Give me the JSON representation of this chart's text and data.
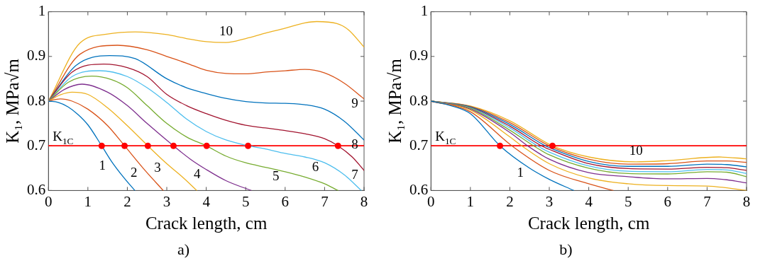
{
  "chart_data": [
    {
      "type": "line",
      "title": "a)",
      "xlabel": "Crack length, cm",
      "ylabel": "K₁, MPa√m",
      "xlim": [
        0,
        8
      ],
      "ylim": [
        0.6,
        1
      ],
      "xticks": [
        0,
        1,
        2,
        3,
        4,
        5,
        6,
        7,
        8
      ],
      "yticks": [
        0.6,
        0.7,
        0.8,
        0.9,
        1
      ],
      "grid": false,
      "marker": "none",
      "series": [
        {
          "name": "1",
          "color": "#0072bd",
          "x": [
            0,
            0.25,
            0.5,
            0.75,
            1,
            1.35,
            1.6,
            1.9,
            2.19
          ],
          "values": [
            0.8,
            0.797,
            0.787,
            0.77,
            0.747,
            0.7,
            0.665,
            0.63,
            0.6
          ]
        },
        {
          "name": "2",
          "color": "#d95319",
          "x": [
            0,
            0.3,
            0.6,
            1,
            1.5,
            1.93,
            2.4,
            2.91
          ],
          "values": [
            0.8,
            0.805,
            0.8,
            0.782,
            0.745,
            0.7,
            0.65,
            0.6
          ]
        },
        {
          "name": "3",
          "color": "#edb120",
          "x": [
            0,
            0.3,
            0.6,
            1,
            1.5,
            2,
            2.52,
            3,
            3.4,
            3.76
          ],
          "values": [
            0.8,
            0.814,
            0.82,
            0.815,
            0.785,
            0.745,
            0.7,
            0.66,
            0.63,
            0.6
          ]
        },
        {
          "name": "4",
          "color": "#7e2f8e",
          "x": [
            0,
            0.4,
            0.85,
            1.5,
            2,
            2.5,
            3.17,
            3.6,
            4,
            4.5,
            5.14
          ],
          "values": [
            0.8,
            0.826,
            0.838,
            0.82,
            0.79,
            0.75,
            0.7,
            0.67,
            0.647,
            0.622,
            0.6
          ]
        },
        {
          "name": "5",
          "color": "#77ac30",
          "x": [
            0,
            0.5,
            1.1,
            1.6,
            2,
            2.5,
            3,
            3.5,
            4,
            4.5,
            5,
            5.5,
            6,
            6.5,
            7,
            7.34
          ],
          "values": [
            0.8,
            0.842,
            0.856,
            0.848,
            0.83,
            0.79,
            0.75,
            0.72,
            0.7,
            0.677,
            0.662,
            0.652,
            0.642,
            0.63,
            0.615,
            0.6
          ]
        },
        {
          "name": "6",
          "color": "#4dbeee",
          "x": [
            0,
            0.6,
            1.3,
            2,
            2.5,
            3,
            3.5,
            4,
            4.5,
            5.06,
            5.5,
            6,
            6.5,
            7,
            7.5,
            7.93
          ],
          "values": [
            0.8,
            0.855,
            0.868,
            0.855,
            0.83,
            0.797,
            0.76,
            0.732,
            0.713,
            0.7,
            0.693,
            0.683,
            0.675,
            0.662,
            0.635,
            0.6
          ]
        },
        {
          "name": "7",
          "color": "#a2142f",
          "x": [
            0,
            0.6,
            1.4,
            2,
            2.5,
            3,
            3.5,
            4,
            4.5,
            5,
            5.5,
            6,
            6.5,
            7,
            7.34,
            7.7,
            8
          ],
          "values": [
            0.8,
            0.865,
            0.883,
            0.875,
            0.855,
            0.815,
            0.79,
            0.772,
            0.757,
            0.746,
            0.74,
            0.734,
            0.727,
            0.716,
            0.7,
            0.675,
            0.645
          ]
        },
        {
          "name": "8",
          "color": "#0072bd",
          "x": [
            0,
            0.7,
            1.55,
            2.2,
            3,
            3.5,
            4,
            4.5,
            5,
            5.5,
            6,
            6.5,
            7,
            7.5,
            8
          ],
          "values": [
            0.8,
            0.88,
            0.902,
            0.895,
            0.85,
            0.83,
            0.817,
            0.806,
            0.799,
            0.796,
            0.795,
            0.792,
            0.782,
            0.755,
            0.713
          ]
        },
        {
          "name": "9",
          "color": "#d95319",
          "x": [
            0,
            0.8,
            1.75,
            2.5,
            3,
            3.5,
            4,
            4.5,
            5,
            5.5,
            6,
            6.5,
            7,
            7.5,
            8
          ],
          "values": [
            0.8,
            0.905,
            0.925,
            0.915,
            0.9,
            0.885,
            0.869,
            0.862,
            0.861,
            0.865,
            0.868,
            0.871,
            0.863,
            0.84,
            0.805
          ]
        },
        {
          "name": "10",
          "color": "#edb120",
          "x": [
            0,
            0.8,
            1.5,
            2.2,
            3,
            3.5,
            4,
            4.5,
            5,
            5.5,
            6,
            6.5,
            6.8,
            7.3,
            7.6,
            8
          ],
          "values": [
            0.8,
            0.93,
            0.95,
            0.955,
            0.949,
            0.94,
            0.933,
            0.931,
            0.94,
            0.952,
            0.963,
            0.975,
            0.978,
            0.974,
            0.96,
            0.921
          ]
        },
        {
          "type": "scatter",
          "marker": "circle",
          "color": "#ff0000",
          "x": [
            1.35,
            1.93,
            2.52,
            3.17,
            4.01,
            5.06,
            7.34
          ],
          "values": [
            0.7,
            0.7,
            0.7,
            0.7,
            0.7,
            0.7,
            0.7
          ]
        }
      ],
      "ref_lines": [
        {
          "axis": "y",
          "value": 0.7,
          "label": "K$_{1C}$",
          "color": "#ff0000"
        }
      ]
    },
    {
      "type": "line",
      "title": "b)",
      "xlabel": "Crack length, cm",
      "ylabel": "K₁, MPa√m",
      "xlim": [
        0,
        8
      ],
      "ylim": [
        0.6,
        1
      ],
      "xticks": [
        0,
        1,
        2,
        3,
        4,
        5,
        6,
        7,
        8
      ],
      "yticks": [
        0.6,
        0.7,
        0.8,
        0.9,
        1
      ],
      "grid": false,
      "marker": "none",
      "series": [
        {
          "name": "1",
          "color": "#0072bd",
          "x": [
            0,
            0.5,
            1,
            1.75,
            2.5,
            3,
            3.62
          ],
          "values": [
            0.8,
            0.79,
            0.772,
            0.7,
            0.65,
            0.625,
            0.6
          ]
        },
        {
          "color": "#d95319",
          "x": [
            0,
            1,
            2.05,
            3,
            4,
            4.62
          ],
          "values": [
            0.8,
            0.776,
            0.7,
            0.645,
            0.615,
            0.6
          ]
        },
        {
          "color": "#edb120",
          "x": [
            0,
            1,
            2,
            2.3,
            3,
            4,
            5,
            6,
            7,
            8
          ],
          "values": [
            0.8,
            0.78,
            0.72,
            0.7,
            0.66,
            0.628,
            0.615,
            0.611,
            0.61,
            0.6
          ]
        },
        {
          "color": "#7e2f8e",
          "x": [
            0,
            1,
            2,
            2.45,
            3,
            4,
            5,
            6,
            7,
            7.5,
            8
          ],
          "values": [
            0.8,
            0.782,
            0.73,
            0.7,
            0.67,
            0.64,
            0.631,
            0.626,
            0.627,
            0.624,
            0.617
          ]
        },
        {
          "color": "#77ac30",
          "x": [
            0,
            1,
            2,
            2.6,
            3,
            4,
            5,
            6,
            7,
            7.5,
            8
          ],
          "values": [
            0.8,
            0.784,
            0.735,
            0.7,
            0.68,
            0.65,
            0.638,
            0.637,
            0.642,
            0.641,
            0.631
          ]
        },
        {
          "color": "#4dbeee",
          "x": [
            0,
            1,
            2,
            2.7,
            3,
            4,
            5,
            6,
            7,
            7.5,
            8
          ],
          "values": [
            0.8,
            0.785,
            0.74,
            0.7,
            0.686,
            0.655,
            0.643,
            0.642,
            0.647,
            0.646,
            0.638
          ]
        },
        {
          "color": "#a2142f",
          "x": [
            0,
            1,
            2,
            2.8,
            3,
            4,
            5,
            6,
            7,
            7.5,
            8
          ],
          "values": [
            0.8,
            0.786,
            0.744,
            0.7,
            0.692,
            0.66,
            0.649,
            0.648,
            0.652,
            0.651,
            0.645
          ]
        },
        {
          "color": "#0072bd",
          "x": [
            0,
            1,
            2,
            2.9,
            3,
            4,
            5,
            6,
            7,
            7.5,
            8
          ],
          "values": [
            0.8,
            0.787,
            0.748,
            0.7,
            0.696,
            0.665,
            0.654,
            0.654,
            0.659,
            0.658,
            0.653
          ]
        },
        {
          "color": "#d95319",
          "x": [
            0,
            1,
            2,
            3,
            4,
            5,
            6,
            7,
            7.5,
            8
          ],
          "values": [
            0.8,
            0.788,
            0.752,
            0.7,
            0.67,
            0.659,
            0.66,
            0.666,
            0.666,
            0.663
          ]
        },
        {
          "name": "10",
          "color": "#edb120",
          "x": [
            0,
            1,
            2,
            3.08,
            4,
            5.2,
            6,
            7.3,
            8
          ],
          "values": [
            0.8,
            0.789,
            0.756,
            0.7,
            0.675,
            0.664,
            0.667,
            0.675,
            0.671
          ]
        },
        {
          "type": "scatter",
          "marker": "circle",
          "color": "#ff0000",
          "x": [
            1.75,
            3.08
          ],
          "values": [
            0.7,
            0.7
          ]
        }
      ],
      "ref_lines": [
        {
          "axis": "y",
          "value": 0.7,
          "label": "K$_{1C}$",
          "color": "#ff0000"
        }
      ]
    }
  ]
}
